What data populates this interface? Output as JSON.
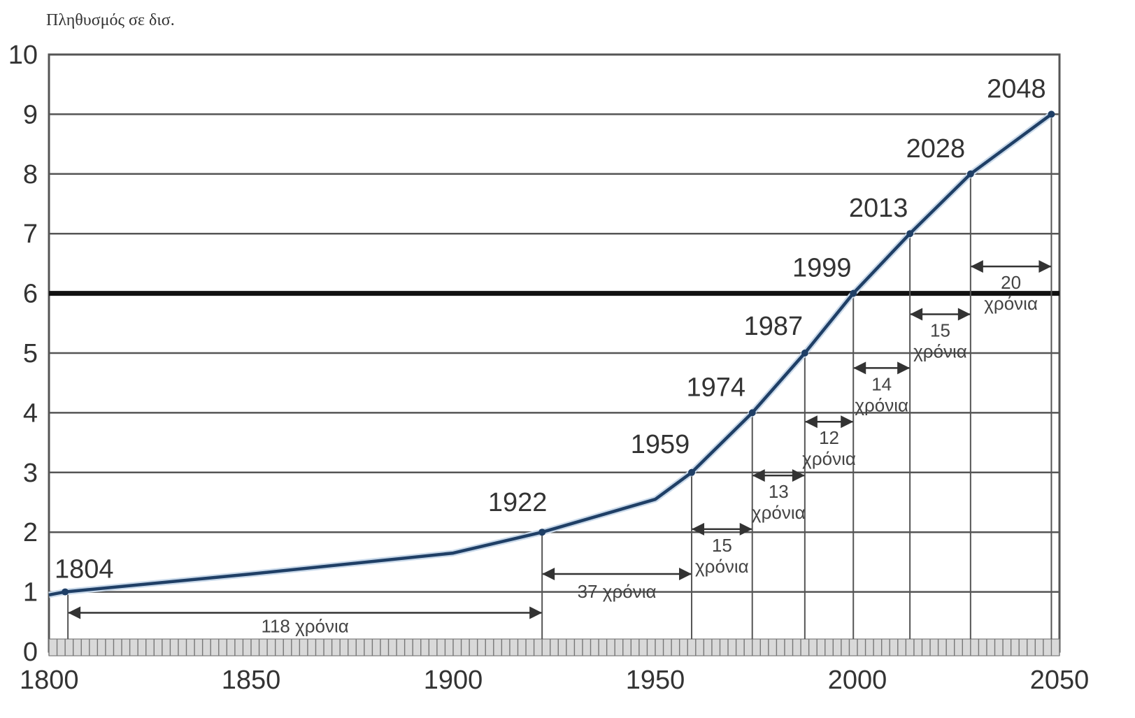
{
  "chart_data": {
    "type": "line",
    "title": "",
    "ylabel": "Πληθυσμός σε δισ.",
    "xlabel": "",
    "xlim": [
      1800,
      2050
    ],
    "ylim": [
      0,
      10
    ],
    "x_ticks": [
      1800,
      1850,
      1900,
      1950,
      2000,
      2050
    ],
    "y_ticks": [
      0,
      1,
      2,
      3,
      4,
      5,
      6,
      7,
      8,
      9,
      10
    ],
    "grid": "horizontal",
    "highlight_y": 6,
    "series": [
      {
        "color": "#1f3f66",
        "x": [
          1800,
          1804,
          1850,
          1900,
          1922,
          1950,
          1959,
          1974,
          1987,
          1999,
          2013,
          2028,
          2048
        ],
        "y": [
          0.95,
          1.0,
          1.3,
          1.65,
          2.0,
          2.55,
          3.0,
          4.0,
          5.0,
          6.0,
          7.0,
          8.0,
          9.0
        ]
      }
    ],
    "milestones": [
      {
        "year": 1804,
        "value": 1,
        "label": "1804"
      },
      {
        "year": 1922,
        "value": 2,
        "label": "1922"
      },
      {
        "year": 1959,
        "value": 3,
        "label": "1959"
      },
      {
        "year": 1974,
        "value": 4,
        "label": "1974"
      },
      {
        "year": 1987,
        "value": 5,
        "label": "1987"
      },
      {
        "year": 1999,
        "value": 6,
        "label": "1999"
      },
      {
        "year": 2013,
        "value": 7,
        "label": "2013"
      },
      {
        "year": 2028,
        "value": 8,
        "label": "2028"
      },
      {
        "year": 2048,
        "value": 9,
        "label": "2048"
      }
    ],
    "intervals": [
      {
        "from": 1804,
        "to": 1922,
        "level": 0.65,
        "number": "118",
        "unit": "χρόνια"
      },
      {
        "from": 1922,
        "to": 1959,
        "level": 1.3,
        "number": "37",
        "unit": "χρόνια"
      },
      {
        "from": 1959,
        "to": 1974,
        "level": 2.05,
        "number": "15",
        "unit": "χρόνια"
      },
      {
        "from": 1974,
        "to": 1987,
        "level": 2.95,
        "number": "13",
        "unit": "χρόνια"
      },
      {
        "from": 1987,
        "to": 1999,
        "level": 3.85,
        "number": "12",
        "unit": "χρόνια"
      },
      {
        "from": 1999,
        "to": 2013,
        "level": 4.75,
        "number": "14",
        "unit": "χρόνια"
      },
      {
        "from": 2013,
        "to": 2028,
        "level": 5.65,
        "number": "15",
        "unit": "χρόνια"
      },
      {
        "from": 2028,
        "to": 2048,
        "level": 6.45,
        "number": "20",
        "unit": "χρόνια"
      }
    ]
  }
}
